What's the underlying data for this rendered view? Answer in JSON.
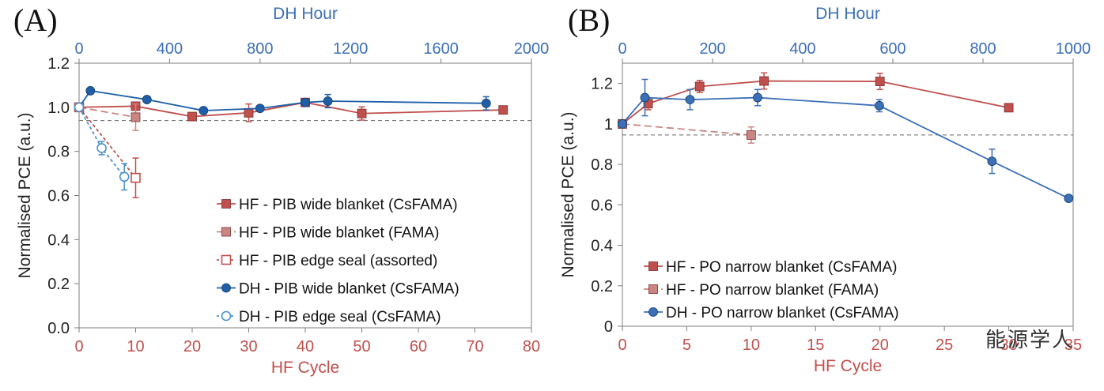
{
  "panels": [
    "(A)",
    "(B)"
  ],
  "watermark": "能源学人",
  "chart_data": [
    {
      "type": "line",
      "title": "",
      "panel": "(A)",
      "xlabel": "HF Cycle",
      "x2label": "DH Hour",
      "ylabel": "Normalised PCE (a.u.)",
      "xlim": [
        0,
        80
      ],
      "x2lim": [
        0,
        2000
      ],
      "ylim": [
        0,
        1.2
      ],
      "xticks": [
        0,
        10,
        20,
        30,
        40,
        50,
        60,
        70,
        80
      ],
      "x2ticks": [
        0,
        400,
        800,
        1200,
        1600,
        2000
      ],
      "yticks": [
        "0.0",
        "0.2",
        "0.4",
        "0.6",
        "0.8",
        "1.0",
        "1.2"
      ],
      "threshold": 0.94,
      "legend_position": "lower-right",
      "series": [
        {
          "name": "HF - PIB wide blanket (CsFAMA)",
          "axis": "bottom",
          "color": "#c0504d",
          "marker": "square",
          "line": "solid",
          "x": [
            0,
            10,
            20,
            30,
            40,
            50,
            75
          ],
          "y": [
            1.0,
            1.005,
            0.958,
            0.975,
            1.022,
            0.972,
            0.988
          ],
          "err": [
            0,
            0.015,
            0,
            0.04,
            0,
            0.03,
            0
          ]
        },
        {
          "name": "HF - PIB wide blanket (FAMA)",
          "axis": "bottom",
          "color": "#c98683",
          "marker": "square",
          "line": "dashed",
          "x": [
            0,
            10
          ],
          "y": [
            1.0,
            0.955
          ],
          "err": [
            0,
            0.06
          ]
        },
        {
          "name": "HF - PIB edge seal (assorted)",
          "axis": "bottom",
          "color": "#c0504d",
          "marker": "open-square",
          "line": "dotted",
          "x": [
            0,
            10
          ],
          "y": [
            1.0,
            0.68
          ],
          "err": [
            0,
            0.09
          ]
        },
        {
          "name": "DH - PIB wide blanket (CsFAMA)",
          "axis": "top",
          "color": "#1f5fa8",
          "marker": "circle",
          "line": "solid",
          "x": [
            0,
            50,
            300,
            550,
            800,
            1000,
            1100,
            1800
          ],
          "y": [
            1.0,
            1.075,
            1.035,
            0.985,
            0.995,
            1.022,
            1.028,
            1.018
          ],
          "err": [
            0,
            0,
            0,
            0,
            0,
            0,
            0.03,
            0.03
          ]
        },
        {
          "name": "DH - PIB edge seal (CsFAMA)",
          "axis": "top",
          "color": "#4a90c8",
          "marker": "open-circle",
          "line": "dotted",
          "x": [
            0,
            100,
            200
          ],
          "y": [
            1.0,
            0.815,
            0.685
          ],
          "err": [
            0,
            0.03,
            0.06
          ]
        }
      ]
    },
    {
      "type": "line",
      "title": "",
      "panel": "(B)",
      "xlabel": "HF Cycle",
      "x2label": "DH Hour",
      "ylabel": "Normalised PCE (a.u.)",
      "xlim": [
        0,
        35
      ],
      "x2lim": [
        0,
        1000
      ],
      "ylim": [
        0,
        1.3
      ],
      "xticks": [
        0,
        5,
        10,
        15,
        20,
        25,
        30,
        35
      ],
      "x2ticks": [
        0,
        200,
        400,
        600,
        800,
        1000
      ],
      "yticks": [
        "0",
        "0.2",
        "0.4",
        "0.6",
        "0.8",
        "1",
        "1.2"
      ],
      "threshold": 0.945,
      "legend_position": "lower-left",
      "series": [
        {
          "name": "HF - PO narrow blanket (CsFAMA)",
          "axis": "bottom",
          "color": "#c0504d",
          "marker": "square",
          "line": "solid",
          "x": [
            0,
            2,
            6,
            11,
            20,
            30
          ],
          "y": [
            1.0,
            1.1,
            1.185,
            1.212,
            1.21,
            1.08
          ],
          "err": [
            0,
            0.03,
            0.03,
            0.04,
            0.04,
            0
          ]
        },
        {
          "name": "HF - PO narrow blanket (FAMA)",
          "axis": "bottom",
          "color": "#c98683",
          "marker": "square",
          "line": "dashed",
          "x": [
            0,
            10
          ],
          "y": [
            1.0,
            0.945
          ],
          "err": [
            0,
            0.04
          ]
        },
        {
          "name": "DH - PO narrow blanket (CsFAMA)",
          "axis": "top",
          "color": "#3b6fb6",
          "marker": "circle",
          "line": "solid",
          "x": [
            0,
            50,
            150,
            300,
            570,
            820,
            990
          ],
          "y": [
            1.0,
            1.13,
            1.12,
            1.13,
            1.09,
            0.815,
            0.632
          ],
          "err": [
            0,
            0.09,
            0.05,
            0.04,
            0.03,
            0.06,
            0
          ]
        }
      ]
    }
  ]
}
